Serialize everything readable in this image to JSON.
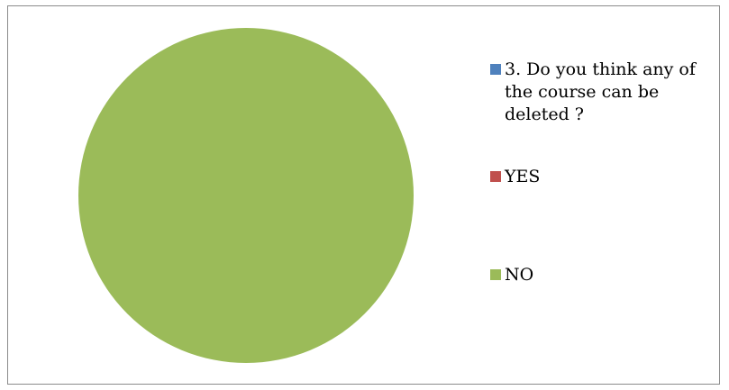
{
  "chart_data": {
    "type": "pie",
    "title": "",
    "legend_position": "right",
    "slices": [
      {
        "label": "3. Do you think any of the course can be deleted ?",
        "value": 0,
        "color": "#4f81bd"
      },
      {
        "label": "YES",
        "value": 0,
        "color": "#c0504d"
      },
      {
        "label": "NO",
        "value": 100,
        "color": "#9bbb59"
      }
    ]
  }
}
